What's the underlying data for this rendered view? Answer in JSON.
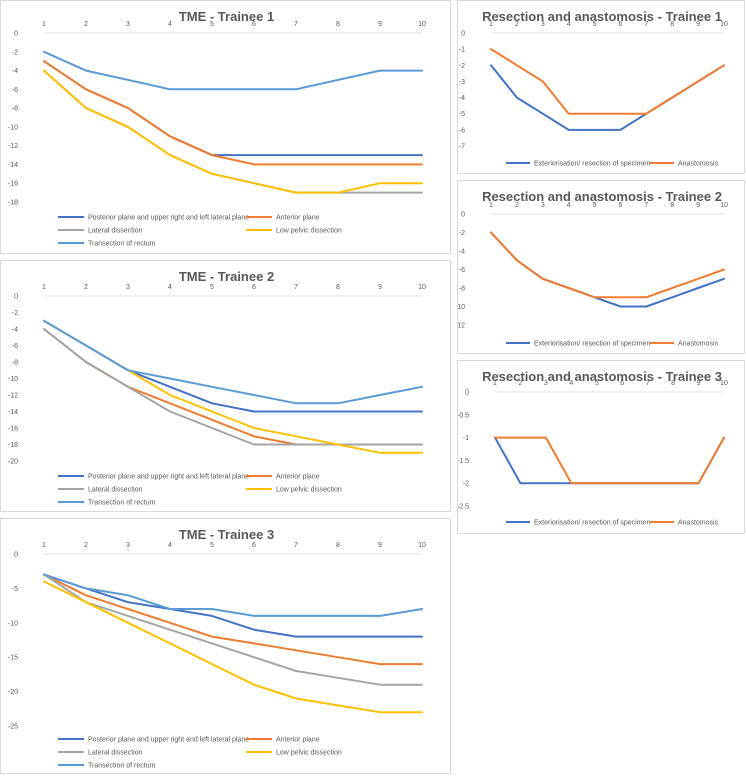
{
  "chart_data": [
    {
      "id": "tme1",
      "type": "line",
      "title": "TME - Trainee 1",
      "x": [
        1,
        2,
        3,
        4,
        5,
        6,
        7,
        8,
        9,
        10
      ],
      "ylim": [
        -18,
        0
      ],
      "ystep": 2,
      "yticks": [
        "0",
        "-2",
        "-4",
        "-6",
        "-8",
        "-10",
        "-12",
        "-14",
        "-16",
        "-18"
      ],
      "series": [
        {
          "name": "Posterior plane and upper right and left lateral plane",
          "color": "#4472c4",
          "values": [
            -3,
            -6,
            -8,
            -11,
            -13,
            -13,
            -13,
            -13,
            -13,
            -13
          ]
        },
        {
          "name": "Anterior plane",
          "color": "#ed7d31",
          "values": [
            -3,
            -6,
            -8,
            -11,
            -13,
            -14,
            -14,
            -14,
            -14,
            -14
          ]
        },
        {
          "name": "Lateral dissection",
          "color": "#a5a5a5",
          "values": [
            -4,
            -8,
            -10,
            -13,
            -15,
            -16,
            -17,
            -17,
            -17,
            -17
          ]
        },
        {
          "name": "Low pelvic dissection",
          "color": "#ffc000",
          "values": [
            -4,
            -8,
            -10,
            -13,
            -15,
            -16,
            -17,
            -17,
            -16,
            -16
          ]
        },
        {
          "name": "Transection of rectum",
          "color": "#5b9bd5",
          "values": [
            -2,
            -4,
            -5,
            -6,
            -6,
            -6,
            -6,
            -5,
            -4,
            -4
          ]
        }
      ]
    },
    {
      "id": "tme2",
      "type": "line",
      "title": "TME - Trainee 2",
      "x": [
        1,
        2,
        3,
        4,
        5,
        6,
        7,
        8,
        9,
        10
      ],
      "ylim": [
        -20,
        0
      ],
      "ystep": 2,
      "yticks": [
        "0",
        "-2",
        "-4",
        "-6",
        "-8",
        "-10",
        "-12",
        "-14",
        "-16",
        "-18",
        "-20"
      ],
      "series": [
        {
          "name": "Posterior plane and upper right and left lateral plane",
          "color": "#4472c4",
          "values": [
            -3,
            -6,
            -9,
            -11,
            -13,
            -14,
            -14,
            -14,
            -14,
            -14
          ]
        },
        {
          "name": "Anterior plane",
          "color": "#ed7d31",
          "values": [
            -4,
            -8,
            -11,
            -13,
            -15,
            -17,
            -18,
            -18,
            -18,
            -18
          ]
        },
        {
          "name": "Lateral dissection",
          "color": "#a5a5a5",
          "values": [
            -4,
            -8,
            -11,
            -14,
            -16,
            -18,
            -18,
            -18,
            -18,
            -18
          ]
        },
        {
          "name": "Low pelvic dissection",
          "color": "#ffc000",
          "values": [
            -3,
            -6,
            -9,
            -12,
            -14,
            -16,
            -17,
            -18,
            -19,
            -19
          ]
        },
        {
          "name": "Transection of rectum",
          "color": "#5b9bd5",
          "values": [
            -3,
            -6,
            -9,
            -10,
            -11,
            -12,
            -13,
            -13,
            -12,
            -11
          ]
        }
      ]
    },
    {
      "id": "tme3",
      "type": "line",
      "title": "TME - Trainee 3",
      "x": [
        1,
        2,
        3,
        4,
        5,
        6,
        7,
        8,
        9,
        10
      ],
      "ylim": [
        -25,
        0
      ],
      "ystep": 5,
      "yticks": [
        "0",
        "-5",
        "-10",
        "-15",
        "-20",
        "-25"
      ],
      "series": [
        {
          "name": "Posterior plane and upper right and left lateral plane",
          "color": "#4472c4",
          "values": [
            -3,
            -5,
            -7,
            -8,
            -9,
            -11,
            -12,
            -12,
            -12,
            -12
          ]
        },
        {
          "name": "Anterior plane",
          "color": "#ed7d31",
          "values": [
            -3,
            -6,
            -8,
            -10,
            -12,
            -13,
            -14,
            -15,
            -16,
            -16
          ]
        },
        {
          "name": "Lateral dissection",
          "color": "#a5a5a5",
          "values": [
            -3,
            -7,
            -9,
            -11,
            -13,
            -15,
            -17,
            -18,
            -19,
            -19
          ]
        },
        {
          "name": "Low pelvic dissection",
          "color": "#ffc000",
          "values": [
            -4,
            -7,
            -10,
            -13,
            -16,
            -19,
            -21,
            -22,
            -23,
            -23
          ]
        },
        {
          "name": "Transection of rectum",
          "color": "#5b9bd5",
          "values": [
            -3,
            -5,
            -6,
            -8,
            -8,
            -9,
            -9,
            -9,
            -9,
            -8
          ]
        }
      ]
    },
    {
      "id": "ra1",
      "type": "line",
      "title": "Resection and anastomosis  - Trainee 1",
      "x": [
        1,
        2,
        3,
        4,
        5,
        6,
        7,
        8,
        9,
        10
      ],
      "ylim": [
        -7,
        0
      ],
      "ystep": 1,
      "yticks": [
        "0",
        "-1",
        "-2",
        "-3",
        "-4",
        "-5",
        "-6",
        "-7"
      ],
      "series": [
        {
          "name": "Exteriorisation/ resection of specimen",
          "color": "#4472c4",
          "values": [
            -2,
            -4,
            -5,
            -6,
            -6,
            -6,
            -5,
            -4,
            -3,
            -2
          ]
        },
        {
          "name": "Anastomosis",
          "color": "#ed7d31",
          "values": [
            -1,
            -2,
            -3,
            -5,
            -5,
            -5,
            -5,
            -4,
            -3,
            -2
          ]
        }
      ]
    },
    {
      "id": "ra2",
      "type": "line",
      "title": "Resection and anastomosis  - Trainee 2",
      "x": [
        1,
        2,
        3,
        4,
        5,
        6,
        7,
        8,
        9,
        10
      ],
      "ylim": [
        -12,
        0
      ],
      "ystep": 2,
      "yticks": [
        "0",
        "-2",
        "-4",
        "-6",
        "-8",
        "-10",
        "-12"
      ],
      "series": [
        {
          "name": "Exteriorisation/ resection of specimen",
          "color": "#4472c4",
          "values": [
            -2,
            -5,
            -7,
            -8,
            -9,
            -10,
            -10,
            -9,
            -8,
            -7
          ]
        },
        {
          "name": "Anastomosis",
          "color": "#ed7d31",
          "values": [
            -2,
            -5,
            -7,
            -8,
            -9,
            -9,
            -9,
            -8,
            -7,
            -6
          ]
        }
      ]
    },
    {
      "id": "ra3",
      "type": "line",
      "title": "Resection and anastomosis  - Trainee 3",
      "x": [
        1,
        2,
        3,
        4,
        5,
        6,
        7,
        8,
        9,
        10
      ],
      "ylim": [
        -2.5,
        0
      ],
      "ystep": 0.5,
      "yticks": [
        "0",
        "-0.5",
        "-1",
        "-1.5",
        "-2",
        "-2.5"
      ],
      "series": [
        {
          "name": "Exteriorisation/ resection of specimen",
          "color": "#4472c4",
          "values": [
            -1,
            -2,
            -2,
            -2,
            -2,
            -2,
            -2,
            -2,
            -2,
            -1
          ]
        },
        {
          "name": "Anastomosis",
          "color": "#ed7d31",
          "values": [
            -1,
            -1,
            -1,
            -2,
            -2,
            -2,
            -2,
            -2,
            -2,
            -1
          ]
        }
      ]
    }
  ]
}
